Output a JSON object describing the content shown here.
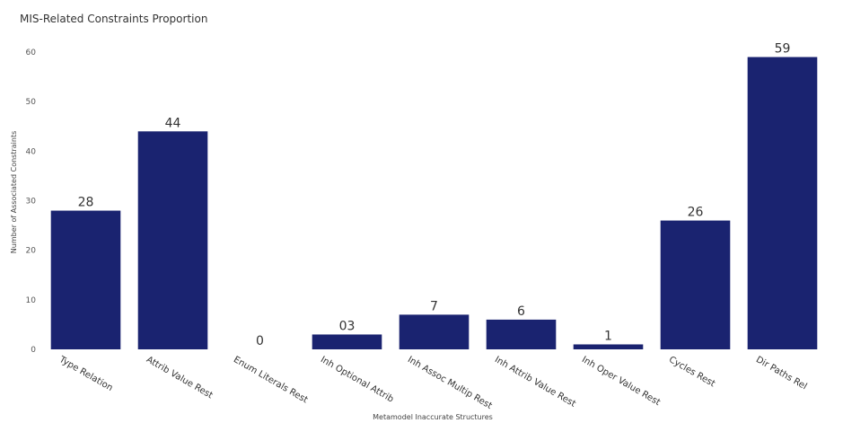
{
  "chart_data": {
    "type": "bar",
    "title": "MIS-Related Constraints Proportion",
    "xlabel": "Metamodel Inaccurate Structures",
    "ylabel": "Number of Associated Constraints",
    "categories": [
      "Type Relation",
      "Attrib Value Rest",
      "Enum Literals Rest",
      "Inh Optional Attrib",
      "Inh Assoc Multip Rest",
      "Inh Attrib Value Rest",
      "Inh Oper Value Rest",
      "Cycles Rest",
      "Dir Paths Rel"
    ],
    "values": [
      28,
      44,
      0,
      3,
      7,
      6,
      1,
      26,
      59
    ],
    "data_labels": [
      "28",
      "44",
      "0",
      "03",
      "7",
      "6",
      "1",
      "26",
      "59"
    ],
    "ylim": [
      0,
      62
    ],
    "yticks": [
      0,
      10,
      20,
      30,
      40,
      50,
      60
    ],
    "bar_color": "#1a2370",
    "grid": false,
    "legend": "none"
  }
}
